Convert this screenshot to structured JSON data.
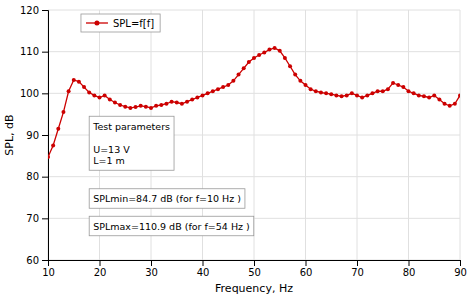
{
  "chart_data": {
    "type": "line",
    "xlabel": "Frequency, Hz",
    "ylabel": "SPL, dB",
    "xlim": [
      10,
      90
    ],
    "ylim": [
      60,
      120
    ],
    "xticks": [
      10,
      20,
      30,
      40,
      50,
      60,
      70,
      80,
      90
    ],
    "yticks": [
      60,
      70,
      80,
      90,
      100,
      110,
      120
    ],
    "grid": true,
    "legend": "upper left",
    "annotations": [
      [
        "Test parameters",
        "U=13 V",
        "L=1 m"
      ],
      [
        "SPLmin=84.7 dB (for f=10 Hz )"
      ],
      [
        "SPLmax=110.9 dB (for f=54 Hz )"
      ]
    ],
    "x": [
      10,
      11,
      12,
      13,
      14,
      15,
      16,
      17,
      18,
      19,
      20,
      21,
      22,
      23,
      24,
      25,
      26,
      27,
      28,
      29,
      30,
      31,
      32,
      33,
      34,
      35,
      36,
      37,
      38,
      39,
      40,
      41,
      42,
      43,
      44,
      45,
      46,
      47,
      48,
      49,
      50,
      51,
      52,
      53,
      54,
      55,
      56,
      57,
      58,
      59,
      60,
      61,
      62,
      63,
      64,
      65,
      66,
      67,
      68,
      69,
      70,
      71,
      72,
      73,
      74,
      75,
      76,
      77,
      78,
      79,
      80,
      81,
      82,
      83,
      84,
      85,
      86,
      87,
      88,
      89,
      90
    ],
    "series": [
      {
        "name": "SPL=f[f]",
        "color": "#cc0000",
        "marker": "circle",
        "values": [
          84.7,
          87.5,
          91.5,
          95.5,
          100.5,
          103.2,
          102.8,
          101.5,
          100.2,
          99.5,
          99.0,
          99.5,
          98.5,
          97.8,
          97.2,
          96.8,
          96.5,
          96.7,
          97.0,
          96.8,
          96.5,
          97.0,
          97.2,
          97.5,
          98.0,
          97.8,
          97.5,
          98.0,
          98.5,
          99.0,
          99.5,
          100.0,
          100.5,
          101.0,
          101.5,
          102.0,
          103.0,
          104.5,
          106.0,
          107.5,
          108.5,
          109.2,
          109.8,
          110.5,
          110.9,
          110.2,
          108.5,
          106.5,
          104.5,
          103.0,
          102.0,
          101.0,
          100.5,
          100.2,
          100.0,
          99.8,
          99.5,
          99.3,
          99.5,
          100.0,
          99.5,
          99.0,
          99.5,
          100.0,
          100.5,
          100.5,
          101.0,
          102.5,
          102.0,
          101.5,
          100.5,
          100.0,
          99.5,
          99.3,
          99.0,
          99.5,
          98.5,
          97.5,
          97.0,
          97.5,
          99.5
        ]
      }
    ]
  }
}
